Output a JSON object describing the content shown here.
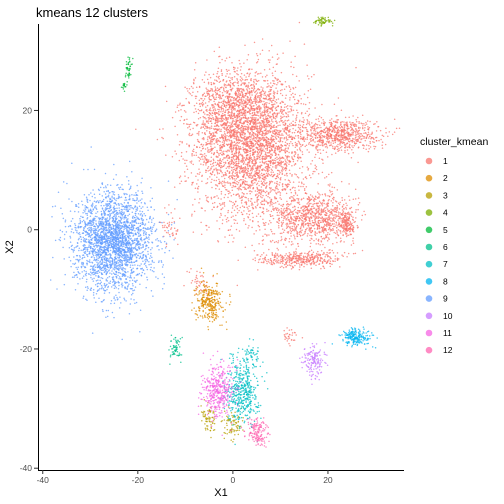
{
  "chart_data": {
    "type": "scatter",
    "title": "kmeans 12 clusters",
    "xlabel": "X1",
    "ylabel": "X2",
    "xlim": [
      -41,
      36
    ],
    "ylim": [
      -40.3,
      34.5
    ],
    "x_ticks": [
      -40,
      -20,
      0,
      20
    ],
    "y_ticks": [
      -40,
      -20,
      0,
      20
    ],
    "x_tick_labels": [
      "-40",
      "-20",
      "0",
      "20"
    ],
    "y_tick_labels": [
      "-40",
      "-20",
      "0",
      "20"
    ],
    "grid": false,
    "legend": {
      "title": "cluster_kmean",
      "placement": "right",
      "labels": [
        "1",
        "2",
        "3",
        "4",
        "5",
        "6",
        "7",
        "8",
        "9",
        "10",
        "11",
        "12"
      ]
    },
    "colors": [
      "#F8766D",
      "#DE8C00",
      "#B79F00",
      "#7CAE00",
      "#00BA38",
      "#00C08B",
      "#00BFC4",
      "#00B4F0",
      "#619CFF",
      "#C77CFF",
      "#F564E3",
      "#FF64B0"
    ],
    "series": [
      {
        "name": "1",
        "approx_points": 7000,
        "center": [
          6,
          12
        ],
        "regions": [
          {
            "center": [
              4,
              14
            ],
            "spread": [
              11,
              11
            ],
            "n": 3200
          },
          {
            "center": [
              0,
              20
            ],
            "spread": [
              8,
              6
            ],
            "n": 800
          },
          {
            "center": [
              17,
              2
            ],
            "spread": [
              8,
              4
            ],
            "n": 900
          },
          {
            "center": [
              22,
              16
            ],
            "spread": [
              8,
              2.5
            ],
            "n": 700
          },
          {
            "center": [
              14,
              -5
            ],
            "spread": [
              8,
              1.2
            ],
            "n": 350
          },
          {
            "center": [
              24,
              1
            ],
            "spread": [
              1.5,
              2
            ],
            "n": 150
          },
          {
            "center": [
              -7,
              -9
            ],
            "spread": [
              2,
              2
            ],
            "n": 40
          },
          {
            "center": [
              -13,
              0
            ],
            "spread": [
              2,
              2
            ],
            "n": 40
          },
          {
            "center": [
              12,
              -18
            ],
            "spread": [
              1.5,
              1.5
            ],
            "n": 30
          }
        ]
      },
      {
        "name": "2",
        "approx_points": 300,
        "center": [
          -5,
          -12
        ],
        "regions": [
          {
            "center": [
              -5,
              -12
            ],
            "spread": [
              2.5,
              3
            ],
            "n": 300
          }
        ]
      },
      {
        "name": "3",
        "approx_points": 150,
        "center": [
          -3,
          -33
        ],
        "regions": [
          {
            "center": [
              -5,
              -32
            ],
            "spread": [
              1.5,
              2
            ],
            "n": 70
          },
          {
            "center": [
              0,
              -33
            ],
            "spread": [
              2,
              2
            ],
            "n": 80
          }
        ]
      },
      {
        "name": "4",
        "approx_points": 60,
        "center": [
          19,
          35
        ],
        "regions": [
          {
            "center": [
              19,
              35
            ],
            "spread": [
              1.8,
              0.8
            ],
            "n": 60
          }
        ]
      },
      {
        "name": "5",
        "approx_points": 60,
        "center": [
          -22,
          26
        ],
        "regions": [
          {
            "center": [
              -22,
              27
            ],
            "spread": [
              0.6,
              1.6
            ],
            "n": 45
          },
          {
            "center": [
              -23,
              24
            ],
            "spread": [
              0.4,
              0.8
            ],
            "n": 15
          }
        ]
      },
      {
        "name": "6",
        "approx_points": 60,
        "center": [
          -12,
          -20
        ],
        "regions": [
          {
            "center": [
              -12,
              -20
            ],
            "spread": [
              1.2,
              1.8
            ],
            "n": 60
          }
        ]
      },
      {
        "name": "7",
        "approx_points": 500,
        "center": [
          3,
          -28
        ],
        "regions": [
          {
            "center": [
              2,
              -27
            ],
            "spread": [
              3,
              5
            ],
            "n": 450
          },
          {
            "center": [
              4,
              -21
            ],
            "spread": [
              2,
              2
            ],
            "n": 50
          }
        ]
      },
      {
        "name": "8",
        "approx_points": 200,
        "center": [
          26,
          -18
        ],
        "regions": [
          {
            "center": [
              26,
              -18
            ],
            "spread": [
              3,
              1.3
            ],
            "n": 200
          }
        ]
      },
      {
        "name": "9",
        "approx_points": 2500,
        "center": [
          -25,
          -2
        ],
        "regions": [
          {
            "center": [
              -25,
              -2
            ],
            "spread": [
              7.5,
              7.5
            ],
            "n": 2500
          }
        ]
      },
      {
        "name": "10",
        "approx_points": 150,
        "center": [
          17,
          -22
        ],
        "regions": [
          {
            "center": [
              17,
              -22
            ],
            "spread": [
              2,
              2.5
            ],
            "n": 150
          }
        ]
      },
      {
        "name": "11",
        "approx_points": 400,
        "center": [
          -3,
          -27
        ],
        "regions": [
          {
            "center": [
              -3,
              -27
            ],
            "spread": [
              3,
              4
            ],
            "n": 400
          }
        ]
      },
      {
        "name": "12",
        "approx_points": 150,
        "center": [
          5,
          -34
        ],
        "regions": [
          {
            "center": [
              5,
              -34
            ],
            "spread": [
              2,
              2
            ],
            "n": 150
          }
        ]
      }
    ]
  }
}
